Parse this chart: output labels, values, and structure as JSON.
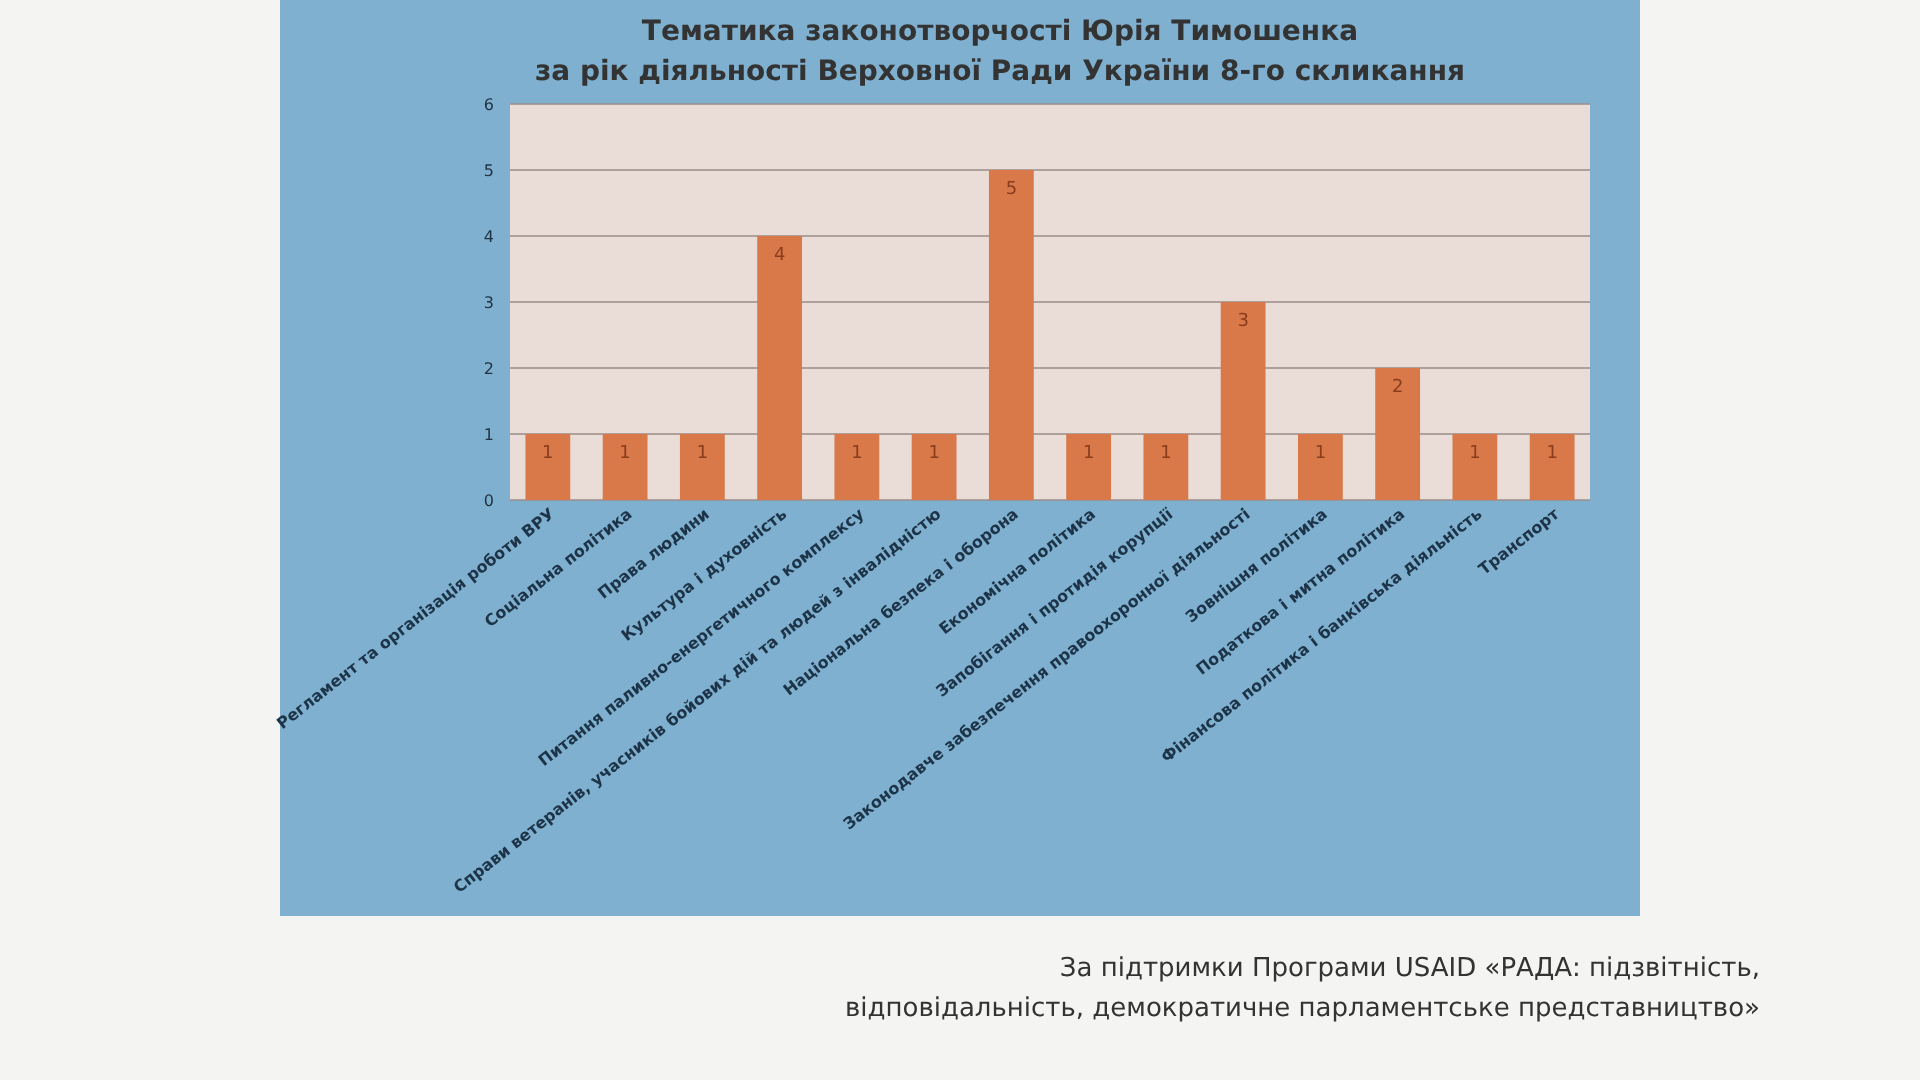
{
  "chart_data": {
    "type": "bar",
    "title": "Тематика законотворчості Юрія Тимошенка",
    "subtitle": "за рік діяльності Верховної Ради України 8-го скликання",
    "categories": [
      "Регламент та організація роботи ВРУ",
      "Соціальна політика",
      "Права людини",
      "Культура і духовність",
      "Питання паливно-енергетичного комплексу",
      "Справи ветеранів, учасників бойових дій та людей з інвалідністю",
      "Національна безпека і оборона",
      "Економічна політика",
      "Запобігання і протидія корупції",
      "Законодавче забезпечення правоохоронної діяльності",
      "Зовнішня політика",
      "Податкова і митна політика",
      "Фінансова політика і банківська діяльність",
      "Транспорт"
    ],
    "values": [
      1,
      1,
      1,
      4,
      1,
      1,
      5,
      1,
      1,
      3,
      1,
      2,
      1,
      1
    ],
    "color": "#d9794a",
    "data_labels": true,
    "ylim": [
      0,
      6
    ],
    "yticks": [
      0,
      1,
      2,
      3,
      4,
      5,
      6
    ],
    "grid": "y",
    "annotations": [
      "За підтримки Програми USAID «РАДА: підзвітність, відповідальність, демократичне парламентське представництво»"
    ]
  }
}
